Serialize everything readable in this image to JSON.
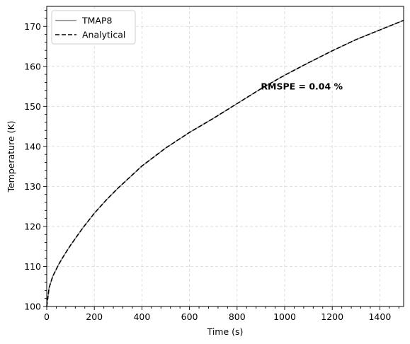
{
  "chart_data": {
    "type": "line",
    "xlabel": "Time (s)",
    "ylabel": "Temperature (K)",
    "xlim": [
      0,
      1500
    ],
    "ylim": [
      100,
      175
    ],
    "xticks": [
      0,
      200,
      400,
      600,
      800,
      1000,
      1200,
      1400
    ],
    "yticks": [
      100,
      110,
      120,
      130,
      140,
      150,
      160,
      170
    ],
    "grid": true,
    "legend_position": "top-left",
    "annotation": {
      "text": "RMSPE = 0.04 %",
      "x": 900,
      "y": 155
    },
    "series": [
      {
        "name": "TMAP8",
        "style": "solid",
        "color": "#808080",
        "x": [
          0,
          10,
          25,
          50,
          75,
          100,
          150,
          200,
          250,
          300,
          400,
          500,
          600,
          700,
          800,
          900,
          1000,
          1100,
          1200,
          1300,
          1400,
          1500
        ],
        "y": [
          100,
          104.7,
          107.5,
          110.5,
          113.0,
          115.3,
          119.5,
          123.3,
          126.6,
          129.6,
          135.1,
          139.6,
          143.5,
          147.0,
          150.7,
          154.4,
          157.8,
          160.9,
          163.9,
          166.7,
          169.1,
          171.5
        ]
      },
      {
        "name": "Analytical",
        "style": "dashed",
        "color": "#000000",
        "x": [
          0,
          10,
          25,
          50,
          75,
          100,
          150,
          200,
          250,
          300,
          400,
          500,
          600,
          700,
          800,
          900,
          1000,
          1100,
          1200,
          1300,
          1400,
          1500
        ],
        "y": [
          100,
          104.7,
          107.5,
          110.5,
          113.0,
          115.3,
          119.5,
          123.3,
          126.6,
          129.6,
          135.1,
          139.6,
          143.5,
          147.0,
          150.7,
          154.4,
          157.8,
          160.9,
          163.9,
          166.7,
          169.1,
          171.5
        ]
      }
    ]
  }
}
